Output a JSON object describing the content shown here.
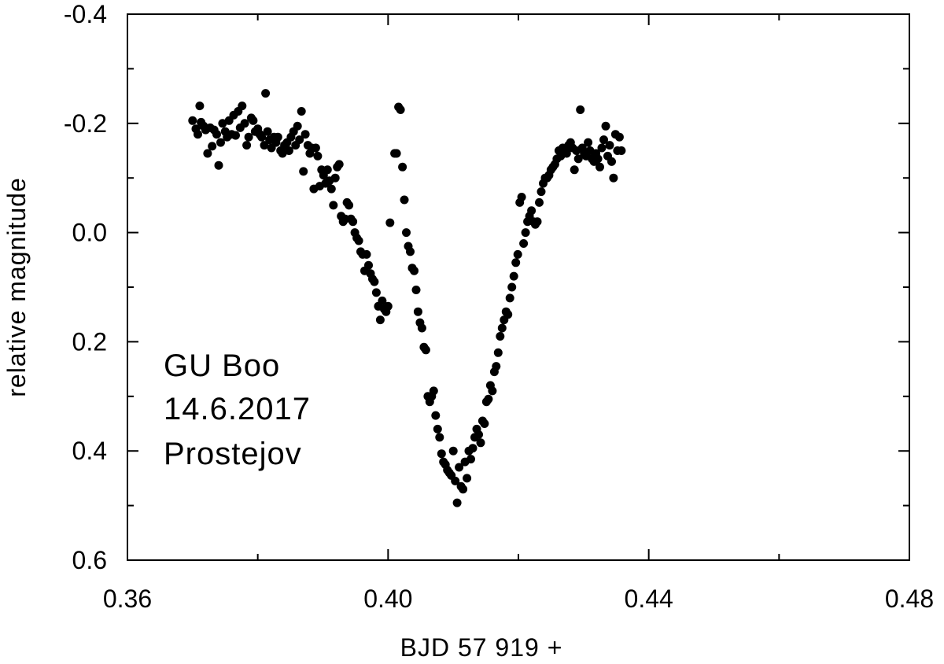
{
  "chart_data": {
    "type": "scatter",
    "xlabel": "BJD 57 919 +",
    "ylabel": "relative magnitude",
    "xlim": [
      0.36,
      0.48
    ],
    "ylim": [
      -0.4,
      0.6
    ],
    "y_inverted": true,
    "grid": false,
    "x_ticks": [
      "0.36",
      "0.40",
      "0.44",
      "0.48"
    ],
    "y_ticks": [
      "-0.4",
      "-0.2",
      "0.0",
      "0.2",
      "0.4",
      "0.6"
    ],
    "annotation": [
      "GU Boo",
      "14.6.2017",
      "Prostejov"
    ],
    "marker_color": "#000000",
    "points": [
      [
        0.37,
        -0.205
      ],
      [
        0.3705,
        -0.19
      ],
      [
        0.3708,
        -0.18
      ],
      [
        0.3711,
        -0.232
      ],
      [
        0.3713,
        -0.202
      ],
      [
        0.3717,
        -0.195
      ],
      [
        0.372,
        -0.188
      ],
      [
        0.3723,
        -0.145
      ],
      [
        0.3727,
        -0.192
      ],
      [
        0.373,
        -0.158
      ],
      [
        0.3733,
        -0.188
      ],
      [
        0.3737,
        -0.18
      ],
      [
        0.374,
        -0.123
      ],
      [
        0.3743,
        -0.165
      ],
      [
        0.3746,
        -0.2
      ],
      [
        0.375,
        -0.185
      ],
      [
        0.3753,
        -0.175
      ],
      [
        0.3756,
        -0.205
      ],
      [
        0.376,
        -0.18
      ],
      [
        0.3763,
        -0.215
      ],
      [
        0.3766,
        -0.178
      ],
      [
        0.377,
        -0.222
      ],
      [
        0.3773,
        -0.192
      ],
      [
        0.3776,
        -0.232
      ],
      [
        0.378,
        -0.2
      ],
      [
        0.3783,
        -0.16
      ],
      [
        0.3786,
        -0.175
      ],
      [
        0.379,
        -0.21
      ],
      [
        0.3793,
        -0.205
      ],
      [
        0.3796,
        -0.185
      ],
      [
        0.38,
        -0.19
      ],
      [
        0.3803,
        -0.18
      ],
      [
        0.3806,
        -0.175
      ],
      [
        0.381,
        -0.16
      ],
      [
        0.3812,
        -0.255
      ],
      [
        0.3815,
        -0.185
      ],
      [
        0.3818,
        -0.17
      ],
      [
        0.3821,
        -0.155
      ],
      [
        0.3825,
        -0.175
      ],
      [
        0.3828,
        -0.165
      ],
      [
        0.3831,
        -0.175
      ],
      [
        0.3835,
        -0.15
      ],
      [
        0.3838,
        -0.145
      ],
      [
        0.3841,
        -0.16
      ],
      [
        0.3845,
        -0.165
      ],
      [
        0.3848,
        -0.15
      ],
      [
        0.3851,
        -0.175
      ],
      [
        0.3855,
        -0.185
      ],
      [
        0.3858,
        -0.16
      ],
      [
        0.3861,
        -0.195
      ],
      [
        0.3864,
        -0.17
      ],
      [
        0.3867,
        -0.222
      ],
      [
        0.387,
        -0.112
      ],
      [
        0.3873,
        -0.18
      ],
      [
        0.3877,
        -0.16
      ],
      [
        0.388,
        -0.145
      ],
      [
        0.3883,
        -0.155
      ],
      [
        0.3886,
        -0.08
      ],
      [
        0.3889,
        -0.155
      ],
      [
        0.3892,
        -0.14
      ],
      [
        0.3895,
        -0.085
      ],
      [
        0.3898,
        -0.115
      ],
      [
        0.3901,
        -0.105
      ],
      [
        0.3904,
        -0.09
      ],
      [
        0.3907,
        -0.115
      ],
      [
        0.391,
        -0.095
      ],
      [
        0.3913,
        -0.08
      ],
      [
        0.3916,
        -0.05
      ],
      [
        0.3919,
        -0.1
      ],
      [
        0.3922,
        -0.12
      ],
      [
        0.3925,
        -0.125
      ],
      [
        0.3928,
        -0.03
      ],
      [
        0.3931,
        -0.02
      ],
      [
        0.3934,
        -0.025
      ],
      [
        0.3937,
        -0.055
      ],
      [
        0.394,
        -0.05
      ],
      [
        0.3943,
        -0.025
      ],
      [
        0.3946,
        -0.02
      ],
      [
        0.3949,
        0.0
      ],
      [
        0.3952,
        0.01
      ],
      [
        0.3955,
        0.015
      ],
      [
        0.3958,
        0.035
      ],
      [
        0.3961,
        0.04
      ],
      [
        0.3964,
        0.07
      ],
      [
        0.3967,
        0.04
      ],
      [
        0.397,
        0.06
      ],
      [
        0.3973,
        0.075
      ],
      [
        0.3976,
        0.085
      ],
      [
        0.3979,
        0.09
      ],
      [
        0.3982,
        0.11
      ],
      [
        0.3985,
        0.135
      ],
      [
        0.3988,
        0.16
      ],
      [
        0.3991,
        0.125
      ],
      [
        0.3994,
        0.14
      ],
      [
        0.3997,
        0.145
      ],
      [
        0.4,
        0.135
      ],
      [
        0.4003,
        -0.018
      ],
      [
        0.401,
        -0.145
      ],
      [
        0.4013,
        -0.145
      ],
      [
        0.4016,
        -0.23
      ],
      [
        0.4019,
        -0.225
      ],
      [
        0.4022,
        -0.12
      ],
      [
        0.4025,
        -0.06
      ],
      [
        0.4028,
        0.0
      ],
      [
        0.4031,
        0.025
      ],
      [
        0.4034,
        0.035
      ],
      [
        0.4037,
        0.065
      ],
      [
        0.404,
        0.07
      ],
      [
        0.4043,
        0.105
      ],
      [
        0.4046,
        0.145
      ],
      [
        0.4049,
        0.165
      ],
      [
        0.4052,
        0.175
      ],
      [
        0.4055,
        0.21
      ],
      [
        0.4058,
        0.215
      ],
      [
        0.4061,
        0.3
      ],
      [
        0.4064,
        0.31
      ],
      [
        0.4067,
        0.3
      ],
      [
        0.407,
        0.29
      ],
      [
        0.4073,
        0.335
      ],
      [
        0.4076,
        0.36
      ],
      [
        0.4079,
        0.375
      ],
      [
        0.4082,
        0.405
      ],
      [
        0.4085,
        0.42
      ],
      [
        0.4088,
        0.425
      ],
      [
        0.4091,
        0.435
      ],
      [
        0.4094,
        0.44
      ],
      [
        0.4097,
        0.445
      ],
      [
        0.41,
        0.4
      ],
      [
        0.4103,
        0.455
      ],
      [
        0.4106,
        0.495
      ],
      [
        0.4109,
        0.43
      ],
      [
        0.4112,
        0.465
      ],
      [
        0.4115,
        0.47
      ],
      [
        0.4118,
        0.42
      ],
      [
        0.4121,
        0.45
      ],
      [
        0.4124,
        0.4
      ],
      [
        0.4127,
        0.415
      ],
      [
        0.413,
        0.395
      ],
      [
        0.4133,
        0.375
      ],
      [
        0.4136,
        0.36
      ],
      [
        0.4139,
        0.37
      ],
      [
        0.4142,
        0.385
      ],
      [
        0.4145,
        0.345
      ],
      [
        0.4148,
        0.35
      ],
      [
        0.4151,
        0.31
      ],
      [
        0.4154,
        0.305
      ],
      [
        0.4157,
        0.28
      ],
      [
        0.416,
        0.29
      ],
      [
        0.4163,
        0.255
      ],
      [
        0.4166,
        0.245
      ],
      [
        0.4169,
        0.22
      ],
      [
        0.4172,
        0.19
      ],
      [
        0.4175,
        0.175
      ],
      [
        0.4178,
        0.16
      ],
      [
        0.4181,
        0.145
      ],
      [
        0.4184,
        0.15
      ],
      [
        0.4187,
        0.12
      ],
      [
        0.419,
        0.1
      ],
      [
        0.4193,
        0.08
      ],
      [
        0.4196,
        0.055
      ],
      [
        0.4199,
        0.04
      ],
      [
        0.4202,
        -0.055
      ],
      [
        0.4205,
        -0.065
      ],
      [
        0.4208,
        0.02
      ],
      [
        0.4211,
        0.0
      ],
      [
        0.4214,
        -0.02
      ],
      [
        0.4217,
        -0.03
      ],
      [
        0.422,
        -0.04
      ],
      [
        0.4223,
        -0.02
      ],
      [
        0.4226,
        -0.015
      ],
      [
        0.4229,
        -0.02
      ],
      [
        0.4232,
        -0.055
      ],
      [
        0.4235,
        -0.075
      ],
      [
        0.4238,
        -0.09
      ],
      [
        0.4241,
        -0.1
      ],
      [
        0.4244,
        -0.1
      ],
      [
        0.4247,
        -0.105
      ],
      [
        0.425,
        -0.115
      ],
      [
        0.4253,
        -0.12
      ],
      [
        0.4256,
        -0.125
      ],
      [
        0.4259,
        -0.135
      ],
      [
        0.4262,
        -0.15
      ],
      [
        0.4265,
        -0.14
      ],
      [
        0.4268,
        -0.155
      ],
      [
        0.4271,
        -0.15
      ],
      [
        0.4274,
        -0.145
      ],
      [
        0.4277,
        -0.16
      ],
      [
        0.428,
        -0.165
      ],
      [
        0.4283,
        -0.155
      ],
      [
        0.4286,
        -0.115
      ],
      [
        0.4289,
        -0.15
      ],
      [
        0.4292,
        -0.135
      ],
      [
        0.4295,
        -0.225
      ],
      [
        0.4298,
        -0.155
      ],
      [
        0.4301,
        -0.145
      ],
      [
        0.4304,
        -0.14
      ],
      [
        0.4307,
        -0.165
      ],
      [
        0.431,
        -0.15
      ],
      [
        0.4313,
        -0.135
      ],
      [
        0.4316,
        -0.13
      ],
      [
        0.4319,
        -0.145
      ],
      [
        0.4322,
        -0.135
      ],
      [
        0.4325,
        -0.12
      ],
      [
        0.4328,
        -0.155
      ],
      [
        0.4331,
        -0.17
      ],
      [
        0.4334,
        -0.195
      ],
      [
        0.4337,
        -0.14
      ],
      [
        0.434,
        -0.16
      ],
      [
        0.4343,
        -0.13
      ],
      [
        0.4346,
        -0.1
      ],
      [
        0.4349,
        -0.18
      ],
      [
        0.4352,
        -0.15
      ],
      [
        0.4355,
        -0.175
      ],
      [
        0.4358,
        -0.15
      ]
    ]
  }
}
